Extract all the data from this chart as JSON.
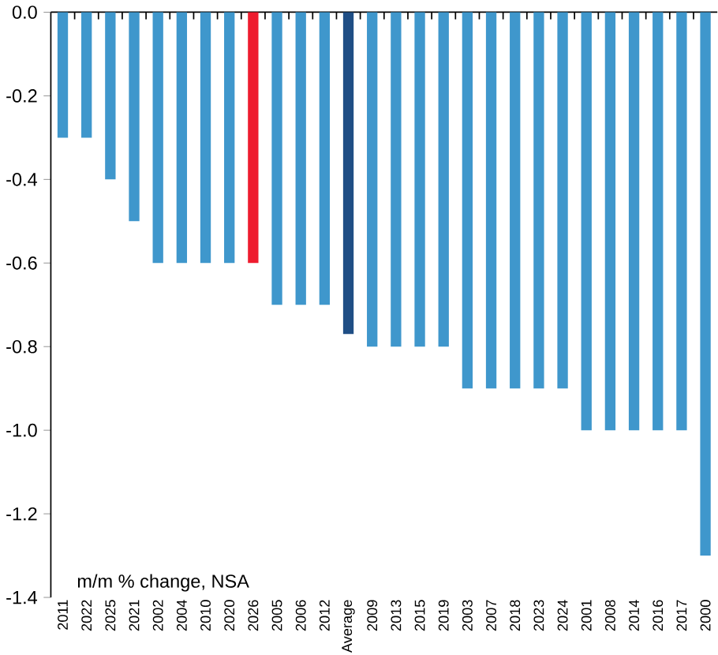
{
  "chart_data": {
    "type": "bar",
    "categories": [
      "2011",
      "2022",
      "2025",
      "2021",
      "2002",
      "2004",
      "2010",
      "2020",
      "2026",
      "2005",
      "2006",
      "2012",
      "Average",
      "2009",
      "2013",
      "2015",
      "2019",
      "2003",
      "2007",
      "2018",
      "2023",
      "2024",
      "2001",
      "2008",
      "2014",
      "2016",
      "2017",
      "2000"
    ],
    "values": [
      -0.3,
      -0.3,
      -0.4,
      -0.5,
      -0.6,
      -0.6,
      -0.6,
      -0.6,
      -0.6,
      -0.7,
      -0.7,
      -0.7,
      -0.77,
      -0.8,
      -0.8,
      -0.8,
      -0.8,
      -0.9,
      -0.9,
      -0.9,
      -0.9,
      -0.9,
      -1.0,
      -1.0,
      -1.0,
      -1.0,
      -1.0,
      -1.3
    ],
    "colors": [
      "#3f97cc",
      "#3f97cc",
      "#3f97cc",
      "#3f97cc",
      "#3f97cc",
      "#3f97cc",
      "#3f97cc",
      "#3f97cc",
      "#ee1c2e",
      "#3f97cc",
      "#3f97cc",
      "#3f97cc",
      "#1f4e85",
      "#3f97cc",
      "#3f97cc",
      "#3f97cc",
      "#3f97cc",
      "#3f97cc",
      "#3f97cc",
      "#3f97cc",
      "#3f97cc",
      "#3f97cc",
      "#3f97cc",
      "#3f97cc",
      "#3f97cc",
      "#3f97cc",
      "#3f97cc",
      "#3f97cc"
    ],
    "ylim": [
      -1.4,
      0
    ],
    "yticks": [
      {
        "value": 0,
        "label": "0.0"
      },
      -0.2,
      -0.4,
      -0.6,
      -0.8,
      {
        "value": -1.0,
        "label": "-1.0"
      },
      -1.2,
      -1.4
    ],
    "annotations": [
      "m/m % change, NSA"
    ],
    "grid": false
  }
}
